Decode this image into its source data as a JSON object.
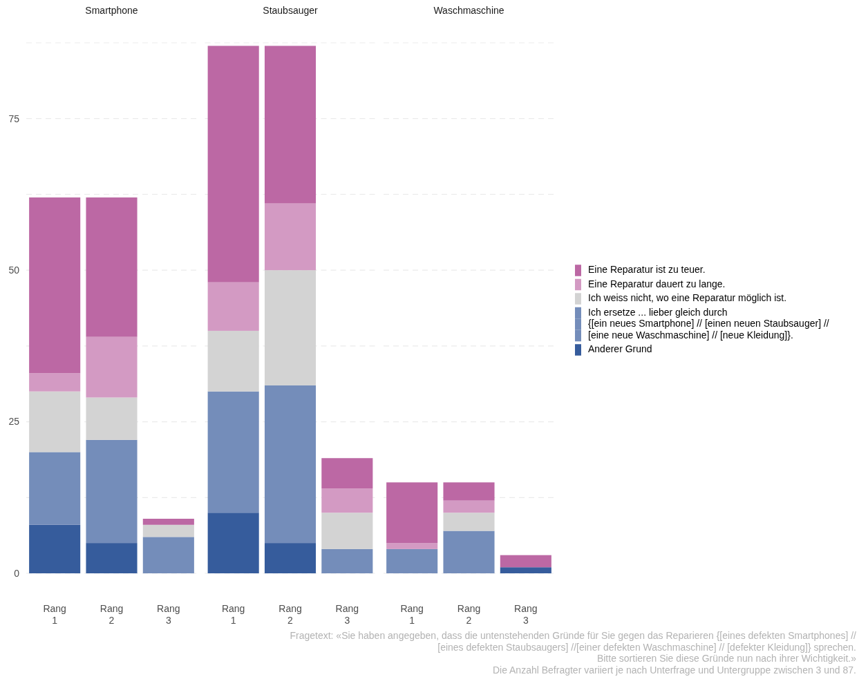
{
  "chart_data": [
    {
      "type": "bar",
      "title": "Smartphone",
      "categories": [
        "Rang\n1",
        "Rang\n2",
        "Rang\n3"
      ],
      "stacked": true,
      "ylim": [
        0,
        87.5
      ],
      "yticks": [
        0,
        {
          "value": 12.5,
          "label": null
        },
        25,
        {
          "value": 37.5,
          "label": null
        },
        50,
        {
          "value": 62.5,
          "label": null
        },
        75,
        {
          "value": 87.5,
          "label": null
        }
      ],
      "grid": true,
      "legend": false,
      "series": [
        {
          "color": "#365c9c",
          "values": [
            8,
            5,
            0
          ]
        },
        {
          "color": "#748dba",
          "values": [
            12,
            17,
            6
          ]
        },
        {
          "color": "#d3d3d3",
          "values": [
            10,
            7,
            2
          ]
        },
        {
          "color": "#d39ac3",
          "values": [
            3,
            10,
            0
          ]
        },
        {
          "color": "#bc68a4",
          "values": [
            29,
            23,
            1
          ]
        }
      ]
    },
    {
      "type": "bar",
      "title": "Staubsauger",
      "categories": [
        "Rang\n1",
        "Rang\n2",
        "Rang\n3"
      ],
      "stacked": true,
      "ylim": [
        0,
        87.5
      ],
      "yticks": [
        0,
        {
          "value": 12.5,
          "label": null
        },
        25,
        {
          "value": 37.5,
          "label": null
        },
        50,
        {
          "value": 62.5,
          "label": null
        },
        75,
        {
          "value": 87.5,
          "label": null
        }
      ],
      "grid": true,
      "legend": false,
      "tick_labels": "x",
      "series": [
        {
          "color": "#365c9c",
          "values": [
            10,
            5,
            0
          ]
        },
        {
          "color": "#748dba",
          "values": [
            20,
            26,
            4
          ]
        },
        {
          "color": "#d3d3d3",
          "values": [
            10,
            19,
            6
          ]
        },
        {
          "color": "#d39ac3",
          "values": [
            8,
            11,
            4
          ]
        },
        {
          "color": "#bc68a4",
          "values": [
            39,
            26,
            5
          ]
        }
      ]
    },
    {
      "type": "bar",
      "title": "Waschmaschine",
      "categories": [
        "Rang\n1",
        "Rang\n2",
        "Rang\n3"
      ],
      "stacked": true,
      "ylim": [
        0,
        87.5
      ],
      "yticks": [
        0,
        {
          "value": 12.5,
          "label": null
        },
        25,
        {
          "value": 37.5,
          "label": null
        },
        50,
        {
          "value": 62.5,
          "label": null
        },
        75,
        {
          "value": 87.5,
          "label": null
        }
      ],
      "grid": true,
      "legend": "right",
      "tick_labels": "x",
      "series": [
        {
          "name": "Anderer Grund",
          "color": "#365c9c",
          "values": [
            0,
            0,
            1
          ]
        },
        {
          "name": "Ich ersetze ... lieber gleich durch\n{[ein neues Smartphone] // [einen neuen Staubsauger] //\n[eine neue Waschmaschine] // [neue Kleidung]}.",
          "color": "#748dba",
          "values": [
            4,
            7,
            0
          ]
        },
        {
          "name": "Ich weiss nicht, wo eine Reparatur möglich ist.",
          "color": "#d3d3d3",
          "values": [
            0,
            3,
            0
          ]
        },
        {
          "name": "Eine Reparatur dauert zu lange.",
          "color": "#d39ac3",
          "values": [
            1,
            2,
            0
          ]
        },
        {
          "name": "Eine Reparatur ist zu teuer.",
          "color": "#bc68a4",
          "values": [
            10,
            3,
            2
          ]
        }
      ],
      "annotations": [
        "Fragetext: «Sie haben angegeben, dass die untenstehenden Gründe für Sie gegen das Reparieren {[eines defekten Smartphones] //\n[eines defekten Staubsaugers] //[einer defekten Waschmaschine] // [defekter Kleidung]} sprechen.\nBitte sortieren Sie diese Gründe nun nach ihrer Wichtigkeit.»\nDie Anzahl Befragter variiert je nach Unterfrage und Untergruppe zwischen 3 und 87."
      ]
    }
  ]
}
